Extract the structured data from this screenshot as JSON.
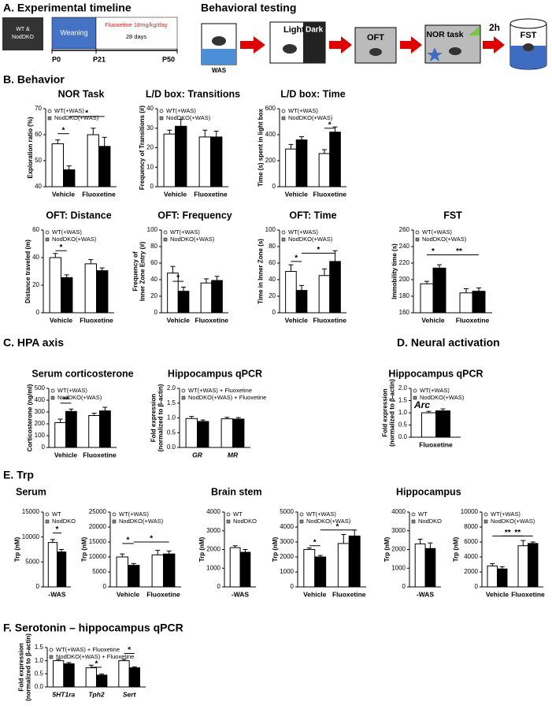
{
  "panels": {
    "a": "A. Experimental timeline",
    "testing": "Behavioral testing",
    "b": "B. Behavior",
    "c": "C. HPA axis",
    "d": "D. Neural activation",
    "e": "E. Trp",
    "f": "F. Serotonin – hippocampus qPCR"
  },
  "timeline": {
    "mice": [
      "WT &",
      "NodDKO"
    ],
    "weaning": "Weaning",
    "treatment": "Fluoxetine 18mg/kg/day",
    "duration": "28 days",
    "ticks": [
      "P0",
      "P21",
      "P50"
    ]
  },
  "testing": {
    "was": "WAS",
    "light": "Light",
    "dark": "Dark",
    "oft": "OFT",
    "nor": "NOR task",
    "delay": "2h",
    "fst": "FST"
  },
  "chart_data": [
    {
      "type": "bar",
      "title": "NOR Task",
      "ylabel": "Exploration ratio (%)",
      "categories": [
        "Vehicle",
        "Fluoxetine"
      ],
      "series": [
        {
          "name": "WT(+WAS)",
          "color": "#ffffff",
          "values": [
            56.5,
            60
          ],
          "errors": [
            1.5,
            2.5
          ]
        },
        {
          "name": "NodDKO(+WAS)",
          "color": "#000000",
          "values": [
            46.5,
            55.5
          ],
          "errors": [
            1.5,
            3.5
          ]
        }
      ],
      "ylim": [
        40,
        70
      ],
      "yticks": [
        40,
        50,
        60,
        70
      ],
      "annotations": [
        "*",
        "*"
      ]
    },
    {
      "type": "bar",
      "title": "L/D box: Transitions",
      "ylabel": "Frequency of Transitions (#)",
      "categories": [
        "Vehicle",
        "Fluoxetine"
      ],
      "series": [
        {
          "name": "WT(+WAS)",
          "color": "#ffffff",
          "values": [
            27,
            25.5
          ],
          "errors": [
            2,
            3.5
          ]
        },
        {
          "name": "NodDKO(+WAS)",
          "color": "#000000",
          "values": [
            31,
            25.5
          ],
          "errors": [
            3.5,
            3
          ]
        }
      ],
      "ylim": [
        0,
        40
      ],
      "yticks": [
        0,
        10,
        20,
        30,
        40
      ],
      "annotations": []
    },
    {
      "type": "bar",
      "title": "L/D box: Time",
      "ylabel": "Time (s) spent in light box",
      "categories": [
        "Vehicle",
        "Fluoxetine"
      ],
      "series": [
        {
          "name": "WT(+WAS)",
          "color": "#ffffff",
          "values": [
            290,
            255
          ],
          "errors": [
            35,
            30
          ]
        },
        {
          "name": "NodDKO(+WAS)",
          "color": "#000000",
          "values": [
            360,
            420
          ],
          "errors": [
            25,
            40
          ]
        }
      ],
      "ylim": [
        0,
        600
      ],
      "yticks": [
        0,
        200,
        400,
        600
      ],
      "annotations": [
        "*"
      ]
    },
    {
      "type": "bar",
      "title": "OFT: Distance",
      "ylabel": "Distance traveled (m)",
      "categories": [
        "Vehicle",
        "Fluoxetine"
      ],
      "series": [
        {
          "name": "WT(+WAS)",
          "color": "#ffffff",
          "values": [
            40,
            35.5
          ],
          "errors": [
            3,
            3
          ]
        },
        {
          "name": "NodDKO(+WAS)",
          "color": "#000000",
          "values": [
            25.5,
            30.5
          ],
          "errors": [
            2,
            2
          ]
        }
      ],
      "ylim": [
        0,
        60
      ],
      "yticks": [
        0,
        20,
        40,
        60
      ],
      "annotations": [
        "*"
      ]
    },
    {
      "type": "bar",
      "title": "OFT: Frequency",
      "ylabel": [
        "Frequency of",
        "Inner Zone Entry (#)"
      ],
      "categories": [
        "Vehicle",
        "Fluoxetine"
      ],
      "series": [
        {
          "name": "WT(+WAS)",
          "color": "#ffffff",
          "values": [
            48,
            36
          ],
          "errors": [
            8,
            5
          ]
        },
        {
          "name": "NodDKO(+WAS)",
          "color": "#000000",
          "values": [
            26,
            39
          ],
          "errors": [
            5,
            5
          ]
        }
      ],
      "ylim": [
        0,
        100
      ],
      "yticks": [
        0,
        20,
        40,
        60,
        80,
        100
      ],
      "annotations": [
        "*"
      ]
    },
    {
      "type": "bar",
      "title": "OFT: Time",
      "ylabel": "Time in Inner Zone (s)",
      "categories": [
        "Vehicle",
        "Fluoxetine"
      ],
      "series": [
        {
          "name": "WT(+WAS)",
          "color": "#ffffff",
          "values": [
            50,
            45
          ],
          "errors": [
            8,
            8
          ]
        },
        {
          "name": "NodDKO(+WAS)",
          "color": "#000000",
          "values": [
            27,
            62
          ],
          "errors": [
            6,
            13
          ]
        }
      ],
      "ylim": [
        0,
        100
      ],
      "yticks": [
        0,
        20,
        40,
        60,
        80,
        100
      ],
      "annotations": [
        "*",
        "*"
      ]
    },
    {
      "type": "bar",
      "title": "FST",
      "ylabel": "Immobility time (s)",
      "categories": [
        "Vehicle",
        "Fluoxetine"
      ],
      "series": [
        {
          "name": "WT(+WAS)",
          "color": "#ffffff",
          "values": [
            195,
            184
          ],
          "errors": [
            3,
            5
          ]
        },
        {
          "name": "NodDKO(+WAS)",
          "color": "#000000",
          "values": [
            214,
            186
          ],
          "errors": [
            4,
            4
          ]
        }
      ],
      "ylim": [
        160,
        260
      ],
      "yticks": [
        160,
        180,
        200,
        220,
        240,
        260
      ],
      "annotations": [
        "*",
        "**"
      ]
    },
    {
      "type": "bar",
      "title": "Serum corticosterone",
      "ylabel": "Corticosterone (ng/ml)",
      "categories": [
        "Vehicle",
        "Fluoxetine"
      ],
      "series": [
        {
          "name": "WT(+WAS)",
          "color": "#ffffff",
          "values": [
            210,
            270
          ],
          "errors": [
            30,
            20
          ]
        },
        {
          "name": "NodDKO(+WAS)",
          "color": "#000000",
          "values": [
            305,
            310
          ],
          "errors": [
            20,
            30
          ]
        }
      ],
      "ylim": [
        0,
        500
      ],
      "yticks": [
        0,
        100,
        200,
        300,
        400,
        500
      ],
      "annotations": [
        "**"
      ]
    },
    {
      "type": "bar",
      "title": "Hippocampus qPCR",
      "ylabel": [
        "Fold expression",
        "(normalized to β-actin)"
      ],
      "categories": [
        "GR",
        "MR"
      ],
      "italic_categories": true,
      "series": [
        {
          "name": "WT(+WAS) + Fluoxetine",
          "color": "#ffffff",
          "values": [
            0.98,
            0.97
          ],
          "errors": [
            0.07,
            0.05
          ]
        },
        {
          "name": "NodDKO(+WAS) + Fluoxetine",
          "color": "#000000",
          "values": [
            0.88,
            0.96
          ],
          "errors": [
            0.05,
            0.05
          ]
        }
      ],
      "ylim": [
        0,
        2
      ],
      "yticks": [
        {
          "value": 0,
          "label": "0.0"
        },
        0.5,
        {
          "value": 1,
          "label": "1.0"
        },
        1.5,
        {
          "value": 2,
          "label": "2.0"
        }
      ],
      "annotations": []
    },
    {
      "type": "bar",
      "title": "Hippocampus qPCR",
      "note": "Arc",
      "ylabel": [
        "Fold expression",
        "(normalized to β-actin)"
      ],
      "categories": [
        "Fluoxetine"
      ],
      "series": [
        {
          "name": "WT(+WAS)",
          "color": "#ffffff",
          "values": [
            1.0
          ],
          "errors": [
            0.06
          ]
        },
        {
          "name": "NodDKO(+WAS)",
          "color": "#000000",
          "values": [
            1.08
          ],
          "errors": [
            0.08
          ]
        }
      ],
      "ylim": [
        0,
        2
      ],
      "yticks": [
        {
          "value": 0,
          "label": "0.0"
        },
        0.5,
        {
          "value": 1,
          "label": "1.0"
        },
        1.5,
        {
          "value": 2,
          "label": "2.0"
        }
      ],
      "annotations": []
    },
    {
      "type": "bar",
      "title": "Serum",
      "ylabel": "Trp (nM)",
      "categories": [
        "-WAS"
      ],
      "series": [
        {
          "name": "WT",
          "color": "#ffffff",
          "values": [
            8900
          ],
          "errors": [
            600
          ]
        },
        {
          "name": "NodDKO",
          "color": "#000000",
          "values": [
            7000
          ],
          "errors": [
            500
          ]
        }
      ],
      "ylim": [
        0,
        15000
      ],
      "yticks": [
        0,
        5000,
        10000,
        15000
      ],
      "annotations": [
        "*"
      ]
    },
    {
      "type": "bar",
      "ylabel": "Trp (nM)",
      "categories": [
        "Vehicle",
        "Fluoxetine"
      ],
      "series": [
        {
          "name": "WT(+WAS)",
          "color": "#ffffff",
          "values": [
            10000,
            10700
          ],
          "errors": [
            1000,
            1500
          ]
        },
        {
          "name": "NodDKO(+WAS)",
          "color": "#000000",
          "values": [
            7200,
            11000
          ],
          "errors": [
            600,
            1000
          ]
        }
      ],
      "ylim": [
        0,
        25000
      ],
      "yticks": [
        0,
        5000,
        10000,
        15000,
        20000,
        25000
      ],
      "annotations": [
        "*",
        "*"
      ]
    },
    {
      "type": "bar",
      "title": "Brain stem",
      "ylabel": "Trp (nM)",
      "categories": [
        "-WAS"
      ],
      "series": [
        {
          "name": "WT",
          "color": "#ffffff",
          "values": [
            2100
          ],
          "errors": [
            100
          ]
        },
        {
          "name": "NodDKO",
          "color": "#000000",
          "values": [
            1850
          ],
          "errors": [
            150
          ]
        }
      ],
      "ylim": [
        0,
        4000
      ],
      "yticks": [
        0,
        1000,
        2000,
        3000,
        4000
      ],
      "annotations": []
    },
    {
      "type": "bar",
      "ylabel": "Trp (nM)",
      "categories": [
        "Vehicle",
        "Fluoxetine"
      ],
      "series": [
        {
          "name": "WT(+WAS)",
          "color": "#ffffff",
          "values": [
            2500,
            2900
          ],
          "errors": [
            100,
            600
          ]
        },
        {
          "name": "NodDKO(+WAS)",
          "color": "#000000",
          "values": [
            2000,
            3400
          ],
          "errors": [
            100,
            400
          ]
        }
      ],
      "ylim": [
        0,
        5000
      ],
      "yticks": [
        0,
        1000,
        2000,
        3000,
        4000,
        5000
      ],
      "annotations": [
        "*",
        "*"
      ]
    },
    {
      "type": "bar",
      "title": "Hippocampus",
      "ylabel": "Trp (nM)",
      "categories": [
        "-WAS"
      ],
      "series": [
        {
          "name": "WT",
          "color": "#ffffff",
          "values": [
            2300
          ],
          "errors": [
            250
          ]
        },
        {
          "name": "NodDKO",
          "color": "#000000",
          "values": [
            2050
          ],
          "errors": [
            300
          ]
        }
      ],
      "ylim": [
        0,
        4000
      ],
      "yticks": [
        0,
        1000,
        2000,
        3000,
        4000
      ],
      "annotations": []
    },
    {
      "type": "bar",
      "ylabel": "Trp (nM)",
      "categories": [
        "Vehicle",
        "Fluoxetine"
      ],
      "series": [
        {
          "name": "WT(+WAS)",
          "color": "#ffffff",
          "values": [
            2800,
            5500
          ],
          "errors": [
            300,
            700
          ]
        },
        {
          "name": "NodDKO(+WAS)",
          "color": "#000000",
          "values": [
            2400,
            5800
          ],
          "errors": [
            300,
            200
          ]
        }
      ],
      "ylim": [
        0,
        10000
      ],
      "yticks": [
        0,
        2000,
        4000,
        6000,
        8000,
        10000
      ],
      "annotations": [
        "**",
        "**"
      ]
    },
    {
      "type": "bar",
      "ylabel": [
        "Fold expression",
        "(normalized to β-actin)"
      ],
      "categories": [
        "5HT1ra",
        "Tph2",
        "Sert"
      ],
      "italic_categories": true,
      "series": [
        {
          "name": "WT(+WAS) + Fluoxetine",
          "color": "#ffffff",
          "values": [
            1.0,
            0.73,
            1.0
          ],
          "errors": [
            0.05,
            0.1,
            0.05
          ]
        },
        {
          "name": "NodDKO(+WAS) + Fluoxetine",
          "color": "#000000",
          "values": [
            0.88,
            0.45,
            0.73
          ],
          "errors": [
            0.05,
            0.04,
            0.03
          ]
        }
      ],
      "ylim": [
        0,
        1.5
      ],
      "yticks": [
        {
          "value": 0,
          "label": "0.0"
        },
        0.5,
        {
          "value": 1,
          "label": "1.0"
        },
        1.5
      ],
      "annotations": [
        "*",
        "*"
      ]
    }
  ]
}
